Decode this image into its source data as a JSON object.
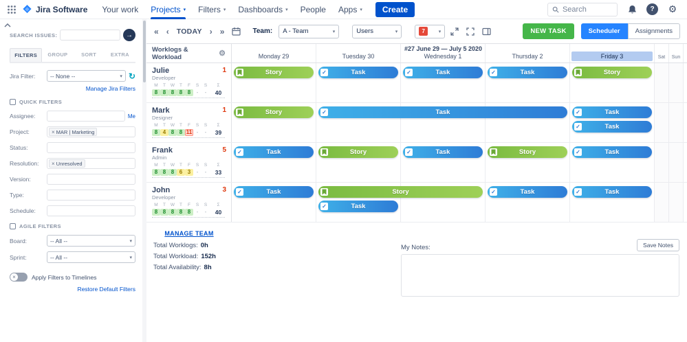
{
  "icons": {
    "chevron_down": "▾",
    "fast_prev": "«",
    "prev": "‹",
    "next": "›",
    "fast_next": "»",
    "gear": "⚙",
    "refresh": "↻",
    "close": "×",
    "arrow_right": "→",
    "check": "✓",
    "help": "?",
    "sum": "Σ"
  },
  "colors": {
    "accent_blue": "#0052CC",
    "scheduler_blue": "#2684FF",
    "new_task_green": "#45B649",
    "story_green": "#7ABB41",
    "task_blue": "#2E7CD6",
    "badge_red": "#DE350B",
    "friday_highlight": "#B3CBF0"
  },
  "topnav": {
    "logo": "Jira Software",
    "items": [
      {
        "label": "Your work",
        "chevron": false,
        "active": false
      },
      {
        "label": "Projects",
        "chevron": true,
        "active": true
      },
      {
        "label": "Filters",
        "chevron": true,
        "active": false
      },
      {
        "label": "Dashboards",
        "chevron": true,
        "active": false
      },
      {
        "label": "People",
        "chevron": false,
        "active": false
      },
      {
        "label": "Apps",
        "chevron": true,
        "active": false
      }
    ],
    "create": "Create",
    "search_placeholder": "Search"
  },
  "sidebar": {
    "search_label": "SEARCH ISSUES:",
    "tabs": [
      {
        "label": "FILTERS",
        "active": true
      },
      {
        "label": "GROUP",
        "active": false
      },
      {
        "label": "SORT",
        "active": false
      },
      {
        "label": "EXTRA",
        "active": false
      }
    ],
    "jira_filter_label": "Jira Filter:",
    "jira_filter_value": "-- None --",
    "manage_jira_filters": "Manage Jira Filters",
    "quick_filters": "QUICK FILTERS",
    "fields": [
      {
        "label": "Assignee:",
        "link": "Me"
      },
      {
        "label": "Project:",
        "tag": "MAR | Marketing"
      },
      {
        "label": "Status:"
      },
      {
        "label": "Resolution:",
        "tag": "Unresolved"
      },
      {
        "label": "Version:"
      },
      {
        "label": "Type:"
      },
      {
        "label": "Schedule:"
      }
    ],
    "agile_filters": "AGILE FILTERS",
    "selects": [
      {
        "label": "Board:",
        "value": "-- All --"
      },
      {
        "label": "Sprint:",
        "value": "-- All --"
      }
    ],
    "apply_toggle_label": "Apply Filters to Timelines",
    "restore_link": "Restore Default Filters"
  },
  "toolbar": {
    "today": "TODAY",
    "team_label": "Team:",
    "team_value": "A - Team",
    "users_value": "Users",
    "days_value": "7",
    "new_task": "NEW TASK",
    "scheduler": "Scheduler",
    "assignments": "Assignments"
  },
  "timeline": {
    "week_title": "#27 June 29 — July 5 2020",
    "panel_title": "Worklogs & Workload",
    "days": [
      "Monday 29",
      "Tuesday 30",
      "Wednesday 1",
      "Thursday 2",
      "Friday 3"
    ],
    "highlighted_day_index": 4,
    "weekend": [
      "Sat",
      "Sun"
    ],
    "day_letters": [
      "M",
      "T",
      "W",
      "T",
      "F",
      "S",
      "S"
    ],
    "manage_team": "MANAGE TEAM",
    "users": [
      {
        "name": "Julie",
        "role": "Developer",
        "badge": "1",
        "total": "40",
        "hours": [
          {
            "v": "8",
            "s": "full"
          },
          {
            "v": "8",
            "s": "full"
          },
          {
            "v": "8",
            "s": "full"
          },
          {
            "v": "8",
            "s": "full"
          },
          {
            "v": "8",
            "s": "full"
          },
          {
            "v": "-",
            "s": "off"
          },
          {
            "v": "-",
            "s": "off"
          }
        ],
        "tasks": [
          {
            "type": "story",
            "label": "Story",
            "day": 0,
            "span": 1,
            "line": 0
          },
          {
            "type": "task",
            "label": "Task",
            "day": 1,
            "span": 1,
            "line": 0
          },
          {
            "type": "task",
            "label": "Task",
            "day": 2,
            "span": 1,
            "line": 0
          },
          {
            "type": "task",
            "label": "Task",
            "day": 3,
            "span": 1,
            "line": 0
          },
          {
            "type": "story",
            "label": "Story",
            "day": 4,
            "span": 1,
            "line": 0
          }
        ]
      },
      {
        "name": "Mark",
        "role": "Designer",
        "badge": "1",
        "total": "39",
        "hours": [
          {
            "v": "8",
            "s": "full"
          },
          {
            "v": "4",
            "s": "partial"
          },
          {
            "v": "8",
            "s": "full"
          },
          {
            "v": "8",
            "s": "full"
          },
          {
            "v": "11",
            "s": "over"
          },
          {
            "v": "-",
            "s": "off"
          },
          {
            "v": "-",
            "s": "off"
          }
        ],
        "tasks": [
          {
            "type": "story",
            "label": "Story",
            "day": 0,
            "span": 1,
            "line": 0
          },
          {
            "type": "task",
            "label": "Task",
            "day": 1,
            "span": 3,
            "line": 0
          },
          {
            "type": "task",
            "label": "Task",
            "day": 4,
            "span": 1,
            "line": 0
          },
          {
            "type": "task",
            "label": "Task",
            "day": 4,
            "span": 1,
            "line": 1
          }
        ]
      },
      {
        "name": "Frank",
        "role": "Admin",
        "badge": "5",
        "total": "33",
        "hours": [
          {
            "v": "8",
            "s": "full"
          },
          {
            "v": "8",
            "s": "full"
          },
          {
            "v": "8",
            "s": "full"
          },
          {
            "v": "6",
            "s": "partial"
          },
          {
            "v": "3",
            "s": "partial"
          },
          {
            "v": "-",
            "s": "off"
          },
          {
            "v": "-",
            "s": "off"
          }
        ],
        "tasks": [
          {
            "type": "task",
            "label": "Task",
            "day": 0,
            "span": 1,
            "line": 0
          },
          {
            "type": "story",
            "label": "Story",
            "day": 1,
            "span": 1,
            "line": 0
          },
          {
            "type": "task",
            "label": "Task",
            "day": 2,
            "span": 1,
            "line": 0
          },
          {
            "type": "story",
            "label": "Story",
            "day": 3,
            "span": 1,
            "line": 0
          },
          {
            "type": "task",
            "label": "Task",
            "day": 4,
            "span": 1,
            "line": 0
          }
        ]
      },
      {
        "name": "John",
        "role": "Developer",
        "badge": "3",
        "total": "40",
        "hours": [
          {
            "v": "8",
            "s": "full"
          },
          {
            "v": "8",
            "s": "full"
          },
          {
            "v": "8",
            "s": "full"
          },
          {
            "v": "8",
            "s": "full"
          },
          {
            "v": "8",
            "s": "full"
          },
          {
            "v": "-",
            "s": "off"
          },
          {
            "v": "-",
            "s": "off"
          }
        ],
        "tasks": [
          {
            "type": "task",
            "label": "Task",
            "day": 0,
            "span": 1,
            "line": 0
          },
          {
            "type": "story",
            "label": "Story",
            "day": 1,
            "span": 2,
            "line": 0
          },
          {
            "type": "task",
            "label": "Task",
            "day": 3,
            "span": 1,
            "line": 0
          },
          {
            "type": "task",
            "label": "Task",
            "day": 4,
            "span": 1,
            "line": 0
          },
          {
            "type": "task",
            "label": "Task",
            "day": 1,
            "span": 1,
            "line": 1
          }
        ]
      }
    ]
  },
  "summary": [
    {
      "label": "Total Worklogs:",
      "value": "0h"
    },
    {
      "label": "Total Workload:",
      "value": "152h"
    },
    {
      "label": "Total Availability:",
      "value": "8h"
    }
  ],
  "notes": {
    "label": "My Notes:",
    "save_button": "Save Notes"
  }
}
